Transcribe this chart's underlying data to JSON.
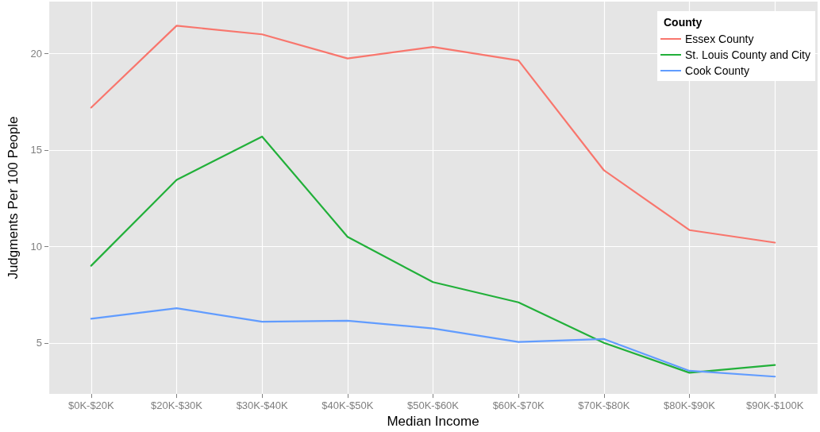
{
  "chart_data": {
    "type": "line",
    "xlabel": "Median Income",
    "ylabel": "Judgments Per 100 People",
    "legend_title": "County",
    "categories": [
      "$0K-$20K",
      "$20K-$30K",
      "$30K-$40K",
      "$40K-$50K",
      "$50K-$60K",
      "$60K-$70K",
      "$70K-$80K",
      "$80K-$90K",
      "$90K-$100K"
    ],
    "series": [
      {
        "name": "Essex County",
        "color": "#f8766d",
        "values": [
          17.2,
          21.45,
          21.0,
          19.75,
          20.35,
          19.65,
          13.95,
          10.85,
          10.2
        ]
      },
      {
        "name": "St. Louis County and City",
        "color": "#22b03a",
        "values": [
          9.0,
          13.45,
          15.7,
          10.5,
          8.15,
          7.1,
          5.0,
          3.45,
          3.85
        ]
      },
      {
        "name": "Cook County",
        "color": "#619cff",
        "values": [
          6.25,
          6.8,
          6.1,
          6.15,
          5.75,
          5.05,
          5.2,
          3.55,
          3.25
        ]
      }
    ],
    "ylim": [
      2.35,
      22.7
    ],
    "yticks": [
      5,
      10,
      15,
      20
    ],
    "grid": true,
    "legend": "top right",
    "marker": "none",
    "line_style": "solid"
  }
}
